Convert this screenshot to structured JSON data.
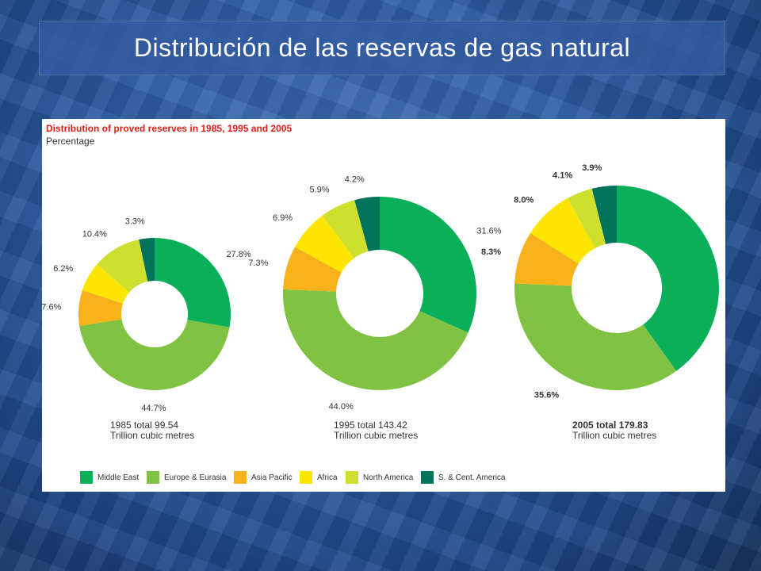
{
  "slide_title": "Distribución de las reservas de gas natural",
  "colors": {
    "middle_east": "#0aaf5a",
    "europe_eurasia": "#80c241",
    "asia_pacific": "#f7b11b",
    "africa": "#fde500",
    "north_america": "#cfdf30",
    "south_central_america": "#00735a"
  },
  "chart_data": {
    "type": "pie",
    "title": "Distribution of proved reserves in 1985, 1995 and 2005",
    "subtitle": "Percentage",
    "categories": [
      "Middle East",
      "Europe & Eurasia",
      "Asia Pacific",
      "Africa",
      "North America",
      "S. & Cent. America"
    ],
    "charts": [
      {
        "year": "1985",
        "total_line1": "1985 total 99.54",
        "total_line2": "Trillion cubic metres",
        "values": [
          27.8,
          44.7,
          7.6,
          6.2,
          10.4,
          3.3
        ],
        "labels": [
          "27.8%",
          "44.7%",
          "7.6%",
          "6.2%",
          "10.4%",
          "3.3%"
        ]
      },
      {
        "year": "1995",
        "total_line1": "1995 total 143.42",
        "total_line2": "Trillion cubic metres",
        "values": [
          31.6,
          44.0,
          7.3,
          6.9,
          5.9,
          4.2
        ],
        "labels": [
          "31.6%",
          "44.0%",
          "7.3%",
          "6.9%",
          "5.9%",
          "4.2%"
        ]
      },
      {
        "year": "2005",
        "total_line1": "2005 total 179.83",
        "total_line2": "Trillion cubic metres",
        "values": [
          40.1,
          35.6,
          8.3,
          8.0,
          4.1,
          3.9
        ],
        "labels": [
          "40.1%",
          "35.6%",
          "8.3%",
          "8.0%",
          "4.1%",
          "3.9%"
        ]
      }
    ],
    "legend": [
      "Middle East",
      "Europe & Eurasia",
      "Asia Pacific",
      "Africa",
      "North America",
      "S. & Cent. America"
    ]
  }
}
